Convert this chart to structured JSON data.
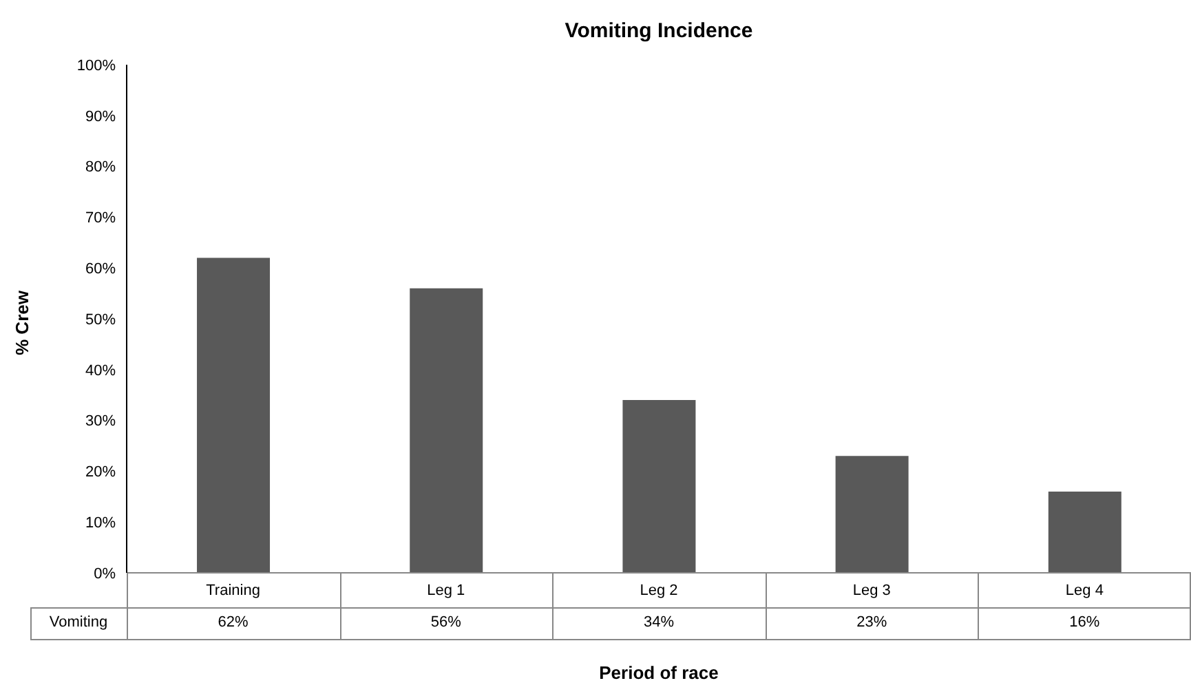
{
  "chart_data": {
    "type": "bar",
    "title": "Vomiting Incidence",
    "xlabel": "Period of race",
    "ylabel": "% Crew",
    "categories": [
      "Training",
      "Leg 1",
      "Leg 2",
      "Leg 3",
      "Leg 4"
    ],
    "series": [
      {
        "name": "Vomiting",
        "color": "#595959",
        "values": [
          62,
          56,
          34,
          23,
          16
        ],
        "value_labels": [
          "62%",
          "56%",
          "34%",
          "23%",
          "16%"
        ]
      }
    ],
    "ylim": [
      0,
      100
    ],
    "yticks": [
      {
        "value": 0,
        "label": "0%"
      },
      {
        "value": 10,
        "label": "10%"
      },
      {
        "value": 20,
        "label": "20%"
      },
      {
        "value": 30,
        "label": "30%"
      },
      {
        "value": 40,
        "label": "40%"
      },
      {
        "value": 50,
        "label": "50%"
      },
      {
        "value": 60,
        "label": "60%"
      },
      {
        "value": 70,
        "label": "70%"
      },
      {
        "value": 80,
        "label": "80%"
      },
      {
        "value": 90,
        "label": "90%"
      },
      {
        "value": 100,
        "label": "100%"
      }
    ],
    "grid": false,
    "legend": false
  }
}
